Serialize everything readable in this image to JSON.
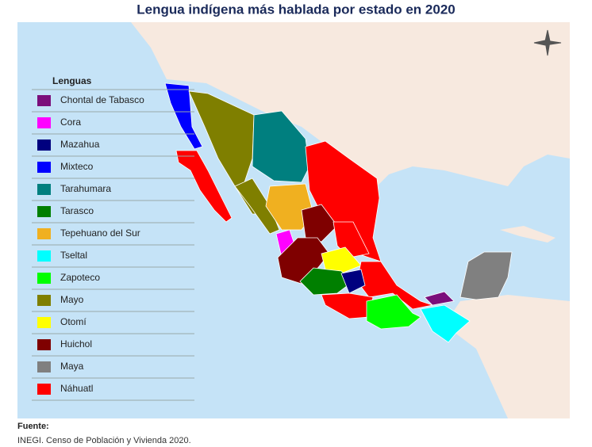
{
  "header": {
    "title": "Lengua indígena más hablada por estado en 2020"
  },
  "legend": {
    "title": "Lenguas",
    "items": [
      {
        "name": "Chontal de Tabasco",
        "color": "#7b0f7b"
      },
      {
        "name": "Cora",
        "color": "#ff00ff"
      },
      {
        "name": "Mazahua",
        "color": "#00007f"
      },
      {
        "name": "Mixteco",
        "color": "#0000ff"
      },
      {
        "name": "Tarahumara",
        "color": "#007f7f"
      },
      {
        "name": "Tarasco",
        "color": "#007f00"
      },
      {
        "name": "Tepehuano del Sur",
        "color": "#f0b020"
      },
      {
        "name": "Tseltal",
        "color": "#00ffff"
      },
      {
        "name": "Zapoteco",
        "color": "#00ff00"
      },
      {
        "name": "Mayo",
        "color": "#7f7f00"
      },
      {
        "name": "Otomí",
        "color": "#ffff00"
      },
      {
        "name": "Huichol",
        "color": "#7f0000"
      },
      {
        "name": "Maya",
        "color": "#808080"
      },
      {
        "name": "Náhuatl",
        "color": "#ff0000"
      }
    ]
  },
  "source": {
    "label": "Fuente:",
    "text": "INEGI. Censo de Población y Vivienda 2020."
  }
}
